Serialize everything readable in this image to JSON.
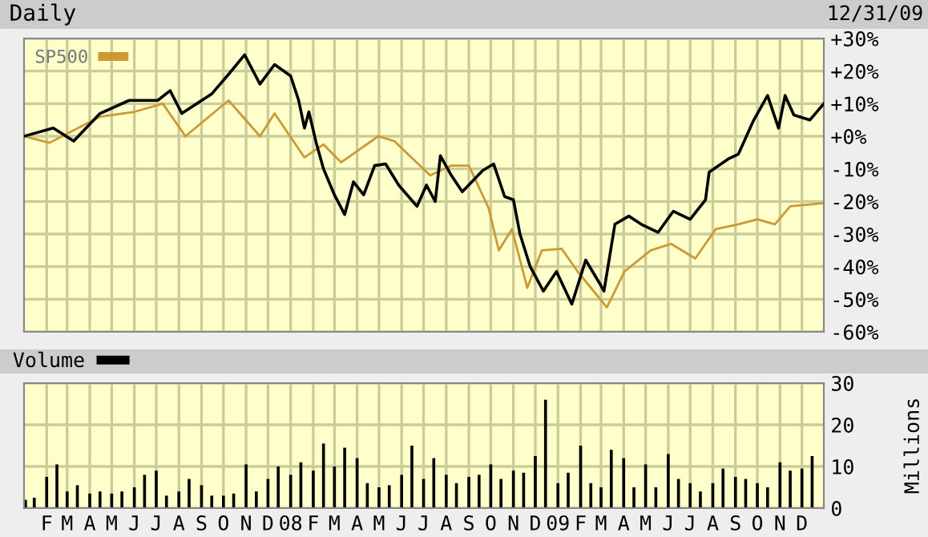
{
  "chart_data": [
    {
      "type": "line",
      "title": "Daily",
      "annotations": [
        "12/31/09"
      ],
      "xlim": [
        "2007-01-01",
        "2009-12-31"
      ],
      "ylim": [
        -60,
        30
      ],
      "xticks": [
        {
          "value": "2007-02-01",
          "label": null
        },
        {
          "value": "2007-03-01",
          "label": null
        },
        {
          "value": "2007-04-01",
          "label": null
        },
        {
          "value": "2007-05-01",
          "label": null
        },
        {
          "value": "2007-06-01",
          "label": null
        },
        {
          "value": "2007-07-01",
          "label": null
        },
        {
          "value": "2007-08-01",
          "label": null
        },
        {
          "value": "2007-09-01",
          "label": null
        },
        {
          "value": "2007-10-01",
          "label": null
        },
        {
          "value": "2007-11-01",
          "label": null
        },
        {
          "value": "2007-12-01",
          "label": null
        },
        {
          "value": "2008-01-01",
          "label": null
        },
        {
          "value": "2008-02-01",
          "label": null
        },
        {
          "value": "2008-03-01",
          "label": null
        },
        {
          "value": "2008-04-01",
          "label": null
        },
        {
          "value": "2008-05-01",
          "label": null
        },
        {
          "value": "2008-06-01",
          "label": null
        },
        {
          "value": "2008-07-01",
          "label": null
        },
        {
          "value": "2008-08-01",
          "label": null
        },
        {
          "value": "2008-09-01",
          "label": null
        },
        {
          "value": "2008-10-01",
          "label": null
        },
        {
          "value": "2008-11-01",
          "label": null
        },
        {
          "value": "2008-12-01",
          "label": null
        },
        {
          "value": "2009-01-01",
          "label": null
        },
        {
          "value": "2009-02-01",
          "label": null
        },
        {
          "value": "2009-03-01",
          "label": null
        },
        {
          "value": "2009-04-01",
          "label": null
        },
        {
          "value": "2009-05-01",
          "label": null
        },
        {
          "value": "2009-06-01",
          "label": null
        },
        {
          "value": "2009-07-01",
          "label": null
        },
        {
          "value": "2009-08-01",
          "label": null
        },
        {
          "value": "2009-09-01",
          "label": null
        },
        {
          "value": "2009-10-01",
          "label": null
        },
        {
          "value": "2009-11-01",
          "label": null
        },
        {
          "value": "2009-12-01",
          "label": null
        }
      ],
      "yticks": [
        {
          "value": 30,
          "label": "+30%"
        },
        {
          "value": 20,
          "label": "+20%"
        },
        {
          "value": 10,
          "label": "+10%"
        },
        {
          "value": 0,
          "label": "+0%"
        },
        {
          "value": -10,
          "label": "-10%"
        },
        {
          "value": -20,
          "label": "-20%"
        },
        {
          "value": -30,
          "label": "-30%"
        },
        {
          "value": -40,
          "label": "-40%"
        },
        {
          "value": -50,
          "label": "-50%"
        },
        {
          "value": -60,
          "label": "-60%"
        }
      ],
      "grid": true,
      "legend": "top left",
      "tick_labels": "y",
      "series": [
        {
          "name": "SP500",
          "color": "#cc9933",
          "x": [
            "2007-01-01",
            "2007-02-05",
            "2007-04-15",
            "2007-06-01",
            "2007-07-10",
            "2007-08-10",
            "2007-10-08",
            "2007-11-20",
            "2007-12-10",
            "2008-01-20",
            "2008-02-15",
            "2008-03-10",
            "2008-04-30",
            "2008-05-22",
            "2008-07-10",
            "2008-08-08",
            "2008-09-01",
            "2008-09-28",
            "2008-10-12",
            "2008-10-30",
            "2008-11-20",
            "2008-12-10",
            "2009-01-06",
            "2009-01-28",
            "2009-03-09",
            "2009-04-02",
            "2009-05-08",
            "2009-06-05",
            "2009-07-08",
            "2009-08-05",
            "2009-09-05",
            "2009-10-01",
            "2009-10-25",
            "2009-11-15",
            "2009-12-31"
          ],
          "values": [
            0,
            -2,
            6,
            7.5,
            10,
            0,
            11,
            0,
            7,
            -6.5,
            -2.5,
            -8,
            0,
            -1.5,
            -12,
            -9,
            -9,
            -22,
            -35,
            -28.5,
            -46.5,
            -35,
            -34.5,
            -41.5,
            -52.5,
            -41.5,
            -35,
            -33,
            -37.5,
            -28.5,
            -27,
            -25.5,
            -27,
            -21.5,
            -20.5
          ]
        },
        {
          "color": "#000000",
          "x": [
            "2007-01-01",
            "2007-02-10",
            "2007-03-10",
            "2007-04-15",
            "2007-05-25",
            "2007-07-03",
            "2007-07-20",
            "2007-08-05",
            "2007-09-15",
            "2007-10-08",
            "2007-10-30",
            "2007-11-20",
            "2007-12-10",
            "2008-01-01",
            "2008-01-12",
            "2008-01-20",
            "2008-01-26",
            "2008-02-05",
            "2008-02-15",
            "2008-03-01",
            "2008-03-15",
            "2008-03-27",
            "2008-04-10",
            "2008-04-25",
            "2008-05-10",
            "2008-05-28",
            "2008-06-22",
            "2008-07-05",
            "2008-07-17",
            "2008-07-24",
            "2008-08-08",
            "2008-08-23",
            "2008-09-20",
            "2008-10-05",
            "2008-10-20",
            "2008-11-01",
            "2008-11-10",
            "2008-11-24",
            "2008-12-12",
            "2008-12-30",
            "2009-01-20",
            "2009-02-08",
            "2009-02-28",
            "2009-03-05",
            "2009-03-20",
            "2009-04-08",
            "2009-04-25",
            "2009-05-18",
            "2009-06-08",
            "2009-07-01",
            "2009-07-22",
            "2009-07-27",
            "2009-08-22",
            "2009-09-05",
            "2009-09-25",
            "2009-10-15",
            "2009-10-30",
            "2009-11-08",
            "2009-11-20",
            "2009-12-12",
            "2009-12-31"
          ],
          "values": [
            0,
            2.5,
            -1.5,
            7,
            11,
            11,
            14,
            7,
            13,
            19,
            25,
            16,
            22,
            18.5,
            11,
            2.5,
            7.5,
            -2,
            -10,
            -18,
            -24,
            -14,
            -18,
            -9,
            -8.5,
            -15,
            -21.5,
            -15,
            -20,
            -6,
            -12,
            -17,
            -10.5,
            -8.5,
            -18.5,
            -19.5,
            -30,
            -40,
            -47.5,
            -41.5,
            -51.5,
            -38,
            -45.5,
            -47.5,
            -27,
            -24.5,
            -27,
            -29.5,
            -23,
            -25.5,
            -19.5,
            -11,
            -7,
            -5.5,
            4.5,
            12.5,
            2.5,
            12.5,
            6.5,
            5,
            10
          ]
        }
      ]
    },
    {
      "type": "bar",
      "ylabel": "Millions",
      "xlim": [
        "2007-01-01",
        "2009-12-31"
      ],
      "ylim": [
        0,
        30
      ],
      "yticks": [
        0,
        10,
        20,
        30
      ],
      "xticks": [
        {
          "value": "2007-02-01",
          "label": "F"
        },
        {
          "value": "2007-03-01",
          "label": "M"
        },
        {
          "value": "2007-04-01",
          "label": "A"
        },
        {
          "value": "2007-05-01",
          "label": "M"
        },
        {
          "value": "2007-06-01",
          "label": "J"
        },
        {
          "value": "2007-07-01",
          "label": "J"
        },
        {
          "value": "2007-08-01",
          "label": "A"
        },
        {
          "value": "2007-09-01",
          "label": "S"
        },
        {
          "value": "2007-10-01",
          "label": "O"
        },
        {
          "value": "2007-11-01",
          "label": "N"
        },
        {
          "value": "2007-12-01",
          "label": "D"
        },
        {
          "value": "2008-01-01",
          "label": "08"
        },
        {
          "value": "2008-02-01",
          "label": "F"
        },
        {
          "value": "2008-03-01",
          "label": "M"
        },
        {
          "value": "2008-04-01",
          "label": "A"
        },
        {
          "value": "2008-05-01",
          "label": "M"
        },
        {
          "value": "2008-06-01",
          "label": "J"
        },
        {
          "value": "2008-07-01",
          "label": "J"
        },
        {
          "value": "2008-08-01",
          "label": "A"
        },
        {
          "value": "2008-09-01",
          "label": "S"
        },
        {
          "value": "2008-10-01",
          "label": "O"
        },
        {
          "value": "2008-11-01",
          "label": "N"
        },
        {
          "value": "2008-12-01",
          "label": "D"
        },
        {
          "value": "2009-01-01",
          "label": "09"
        },
        {
          "value": "2009-02-01",
          "label": "F"
        },
        {
          "value": "2009-03-01",
          "label": "M"
        },
        {
          "value": "2009-04-01",
          "label": "A"
        },
        {
          "value": "2009-05-01",
          "label": "M"
        },
        {
          "value": "2009-06-01",
          "label": "J"
        },
        {
          "value": "2009-07-01",
          "label": "J"
        },
        {
          "value": "2009-08-01",
          "label": "A"
        },
        {
          "value": "2009-09-01",
          "label": "S"
        },
        {
          "value": "2009-10-01",
          "label": "O"
        },
        {
          "value": "2009-11-01",
          "label": "N"
        },
        {
          "value": "2009-12-01",
          "label": "D"
        }
      ],
      "grid": true,
      "legend": "top left",
      "series": [
        {
          "name": "Volume",
          "color": "#000000",
          "x": [
            "2007-01-03",
            "2007-01-15",
            "2007-02-01",
            "2007-02-15",
            "2007-03-01",
            "2007-03-15",
            "2007-04-01",
            "2007-04-15",
            "2007-05-01",
            "2007-05-15",
            "2007-06-01",
            "2007-06-15",
            "2007-07-01",
            "2007-07-15",
            "2007-08-01",
            "2007-08-15",
            "2007-09-01",
            "2007-09-15",
            "2007-10-01",
            "2007-10-15",
            "2007-11-01",
            "2007-11-15",
            "2007-12-01",
            "2007-12-15",
            "2008-01-01",
            "2008-01-15",
            "2008-02-01",
            "2008-02-15",
            "2008-03-01",
            "2008-03-15",
            "2008-04-01",
            "2008-04-15",
            "2008-05-01",
            "2008-05-15",
            "2008-06-01",
            "2008-06-15",
            "2008-07-01",
            "2008-07-15",
            "2008-08-01",
            "2008-08-15",
            "2008-09-01",
            "2008-09-15",
            "2008-10-01",
            "2008-10-15",
            "2008-11-01",
            "2008-11-15",
            "2008-12-01",
            "2008-12-15",
            "2009-01-01",
            "2009-01-15",
            "2009-02-01",
            "2009-02-15",
            "2009-03-01",
            "2009-03-15",
            "2009-04-01",
            "2009-04-15",
            "2009-05-01",
            "2009-05-15",
            "2009-06-01",
            "2009-06-15",
            "2009-07-01",
            "2009-07-15",
            "2009-08-01",
            "2009-08-15",
            "2009-09-01",
            "2009-09-15",
            "2009-10-01",
            "2009-10-15",
            "2009-11-01",
            "2009-11-15",
            "2009-12-01",
            "2009-12-15"
          ],
          "values": [
            2,
            2.5,
            7.5,
            10.5,
            4,
            5.5,
            3.5,
            4,
            3.5,
            4,
            5,
            8,
            9,
            3,
            4,
            7,
            5.5,
            3,
            3,
            3.5,
            10.5,
            4,
            7,
            10,
            8,
            11,
            9,
            15.5,
            10,
            14.5,
            12,
            6,
            5,
            5.5,
            8,
            15,
            7,
            12,
            8,
            6,
            7.5,
            8,
            10.5,
            7,
            9,
            8.5,
            12.5,
            26,
            6,
            8.5,
            15,
            6,
            5,
            14,
            12,
            5,
            10.5,
            5,
            13,
            7,
            6,
            4,
            6,
            9.5,
            7.5,
            7,
            6,
            5,
            11,
            9,
            9.5,
            12.5
          ]
        }
      ]
    }
  ]
}
